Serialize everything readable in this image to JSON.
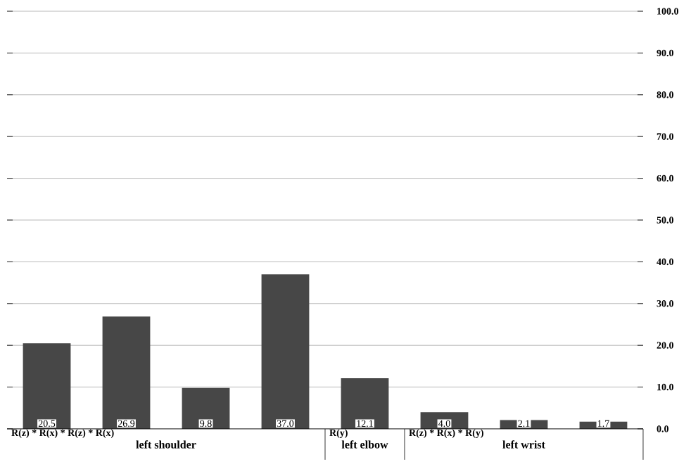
{
  "chart_data": {
    "type": "bar",
    "categories": [
      null,
      null,
      null,
      null,
      null,
      null,
      null,
      null
    ],
    "values": [
      20.5,
      26.9,
      9.8,
      37.0,
      12.1,
      4.0,
      2.1,
      1.7
    ],
    "color": "#474747",
    "value_labels": [
      "20.5",
      "26.9",
      "9.8",
      "37.0",
      "12.1",
      "4.0",
      "2.1",
      "1.7"
    ],
    "grid": "y",
    "ylim": [
      0,
      100
    ],
    "yticks": [
      {
        "value": 0,
        "label": "0.0"
      },
      {
        "value": 10,
        "label": "10.0"
      },
      {
        "value": 20,
        "label": "20.0"
      },
      {
        "value": 30,
        "label": "30.0"
      },
      {
        "value": 40,
        "label": "40.0"
      },
      {
        "value": 50,
        "label": "50.0"
      },
      {
        "value": 60,
        "label": "60.0"
      },
      {
        "value": 70,
        "label": "70.0"
      },
      {
        "value": 80,
        "label": "80.0"
      },
      {
        "value": 90,
        "label": "90.0"
      },
      {
        "value": 100,
        "label": "100.0"
      }
    ],
    "annotations": [
      "R(z) * R(x) * R(z) * R(x)",
      "left shoulder",
      "R(y)",
      "left elbow",
      "R(z) * R(x) * R(y)",
      "left wrist"
    ]
  }
}
